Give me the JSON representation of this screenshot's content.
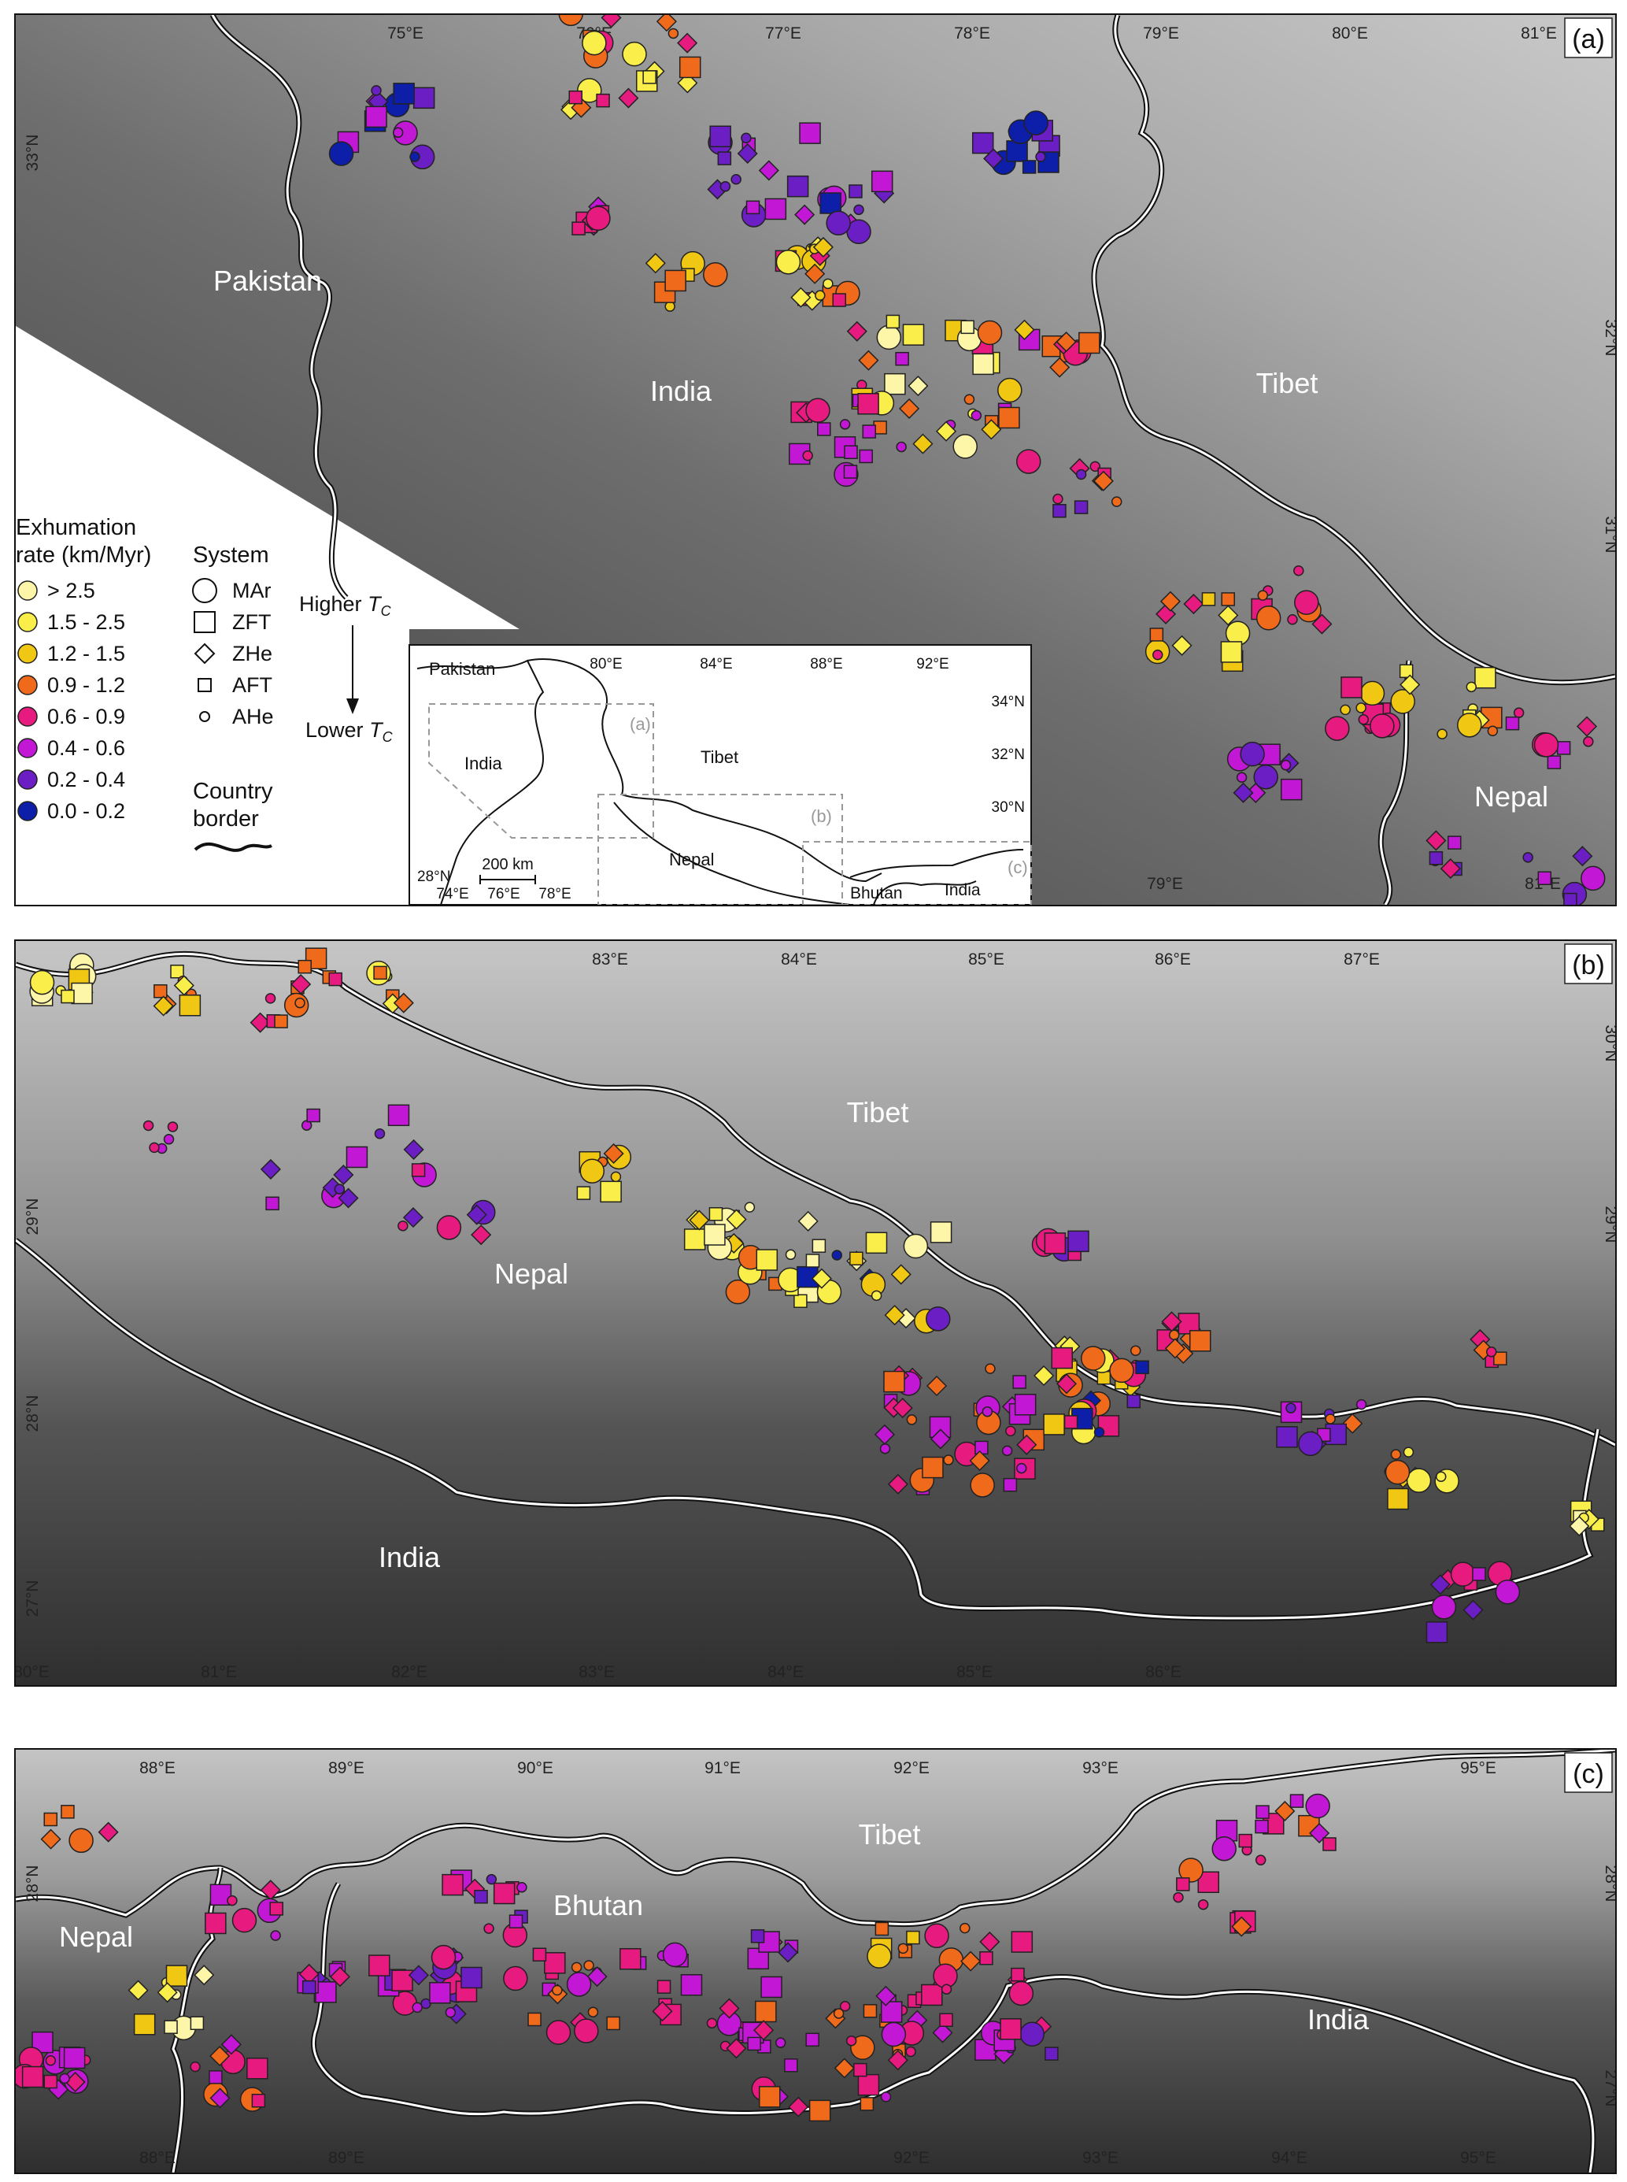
{
  "panels": {
    "a": {
      "label": "(a)",
      "lon_ticks_top": [
        "75°E",
        "76°E",
        "77°E",
        "78°E",
        "79°E",
        "80°E",
        "81°E"
      ],
      "lon_ticks_bottom": [
        "79°E",
        "81°E"
      ],
      "lat_ticks": [
        "33°N",
        "32°N",
        "31°N"
      ],
      "regions": [
        "Pakistan",
        "India",
        "Tibet",
        "Nepal"
      ]
    },
    "b": {
      "label": "(b)",
      "lon_ticks_top": [
        "83°E",
        "84°E",
        "85°E",
        "86°E",
        "87°E"
      ],
      "lon_ticks_bottom": [
        "80°E",
        "81°E",
        "82°E",
        "83°E",
        "84°E",
        "85°E",
        "86°E"
      ],
      "lat_ticks": [
        "30°N",
        "29°N",
        "28°N",
        "27°N"
      ],
      "regions": [
        "Tibet",
        "Nepal",
        "India"
      ]
    },
    "c": {
      "label": "(c)",
      "lon_ticks_top": [
        "88°E",
        "89°E",
        "90°E",
        "91°E",
        "92°E",
        "93°E",
        "95°E"
      ],
      "lon_ticks_bottom": [
        "88°E",
        "89°E",
        "92°E",
        "93°E",
        "94°E",
        "95°E"
      ],
      "lat_ticks": [
        "28°N",
        "27°N"
      ],
      "regions": [
        "Tibet",
        "Nepal",
        "Bhutan",
        "India"
      ]
    }
  },
  "inset": {
    "lon_ticks": [
      "80°E",
      "84°E",
      "88°E",
      "92°E"
    ],
    "lat_ticks": [
      "34°N",
      "32°N",
      "30°N",
      "28°N"
    ],
    "bottom_ticks": [
      "74°E",
      "76°E",
      "78°E"
    ],
    "scale_label": "200 km",
    "regions": [
      "Pakistan",
      "India",
      "Tibet",
      "Nepal",
      "Bhutan",
      "India"
    ],
    "box_labels": [
      "(a)",
      "(b)",
      "(c)"
    ]
  },
  "legend": {
    "rate_title_line1": "Exhumation",
    "rate_title_line2": "rate (km/Myr)",
    "rates": [
      {
        "label": "> 2.5",
        "color": "#fdf6a8"
      },
      {
        "label": "1.5 - 2.5",
        "color": "#f9ee4a"
      },
      {
        "label": "1.2 - 1.5",
        "color": "#f0c814"
      },
      {
        "label": "0.9 - 1.2",
        "color": "#f06a1c"
      },
      {
        "label": "0.6 - 0.9",
        "color": "#e61a7f"
      },
      {
        "label": "0.4 - 0.6",
        "color": "#c218d6"
      },
      {
        "label": "0.2 - 0.4",
        "color": "#6a1ec4"
      },
      {
        "label": "0.0 - 0.2",
        "color": "#0d1ea8"
      }
    ],
    "system_title": "System",
    "systems": [
      {
        "label": "MAr",
        "shape": "large-circle"
      },
      {
        "label": "ZFT",
        "shape": "square"
      },
      {
        "label": "ZHe",
        "shape": "diamond"
      },
      {
        "label": "AFT",
        "shape": "small-square"
      },
      {
        "label": "AHe",
        "shape": "small-circle"
      }
    ],
    "higher_tc": "Higher",
    "lower_tc": "Lower",
    "tc_symbol": "T",
    "tc_sub": "C",
    "border_title_line1": "Country",
    "border_title_line2": "border"
  }
}
